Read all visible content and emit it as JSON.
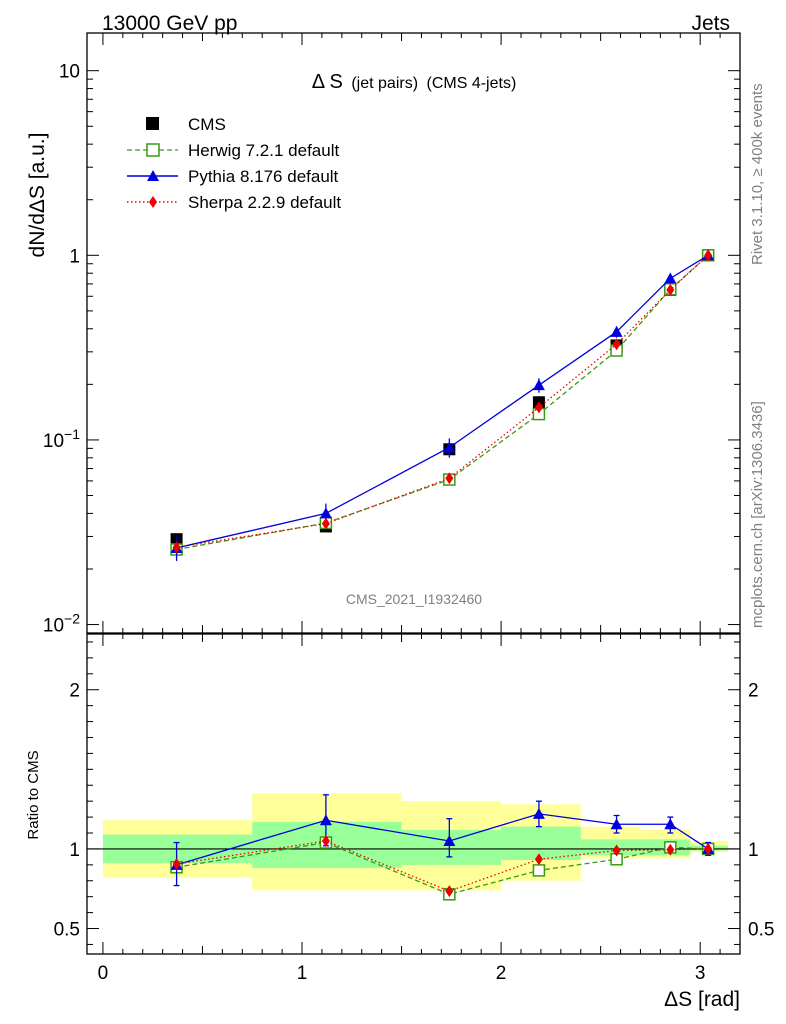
{
  "header": {
    "left": "13000 GeV pp",
    "right": "Jets"
  },
  "side_labels": {
    "rivet": "Rivet 3.1.10, ≥ 400k events",
    "mcplots": "mcplots.cern.ch [arXiv:1306.3436]"
  },
  "colors": {
    "cms": "#000000",
    "herwig": "#3a9a10",
    "pythia": "#0000dd",
    "sherpa": "#ee0000",
    "band_inner": "#99ff99",
    "band_outer": "#ffff99"
  },
  "chart_data": [
    {
      "type": "scatter",
      "title_main": "Δ S",
      "title_sub": "(jet pairs)",
      "title_tail": "(CMS 4-jets)",
      "watermark": "CMS_2021_I1932460",
      "ylabel": "dN/dΔS [a.u.]",
      "yscale": "log",
      "ylim": [
        0.009,
        16
      ],
      "xlim": [
        -0.08,
        3.2
      ],
      "ytick_labels": [
        {
          "value": 10,
          "base": "10",
          "exp": ""
        },
        {
          "value": 1,
          "base": "1",
          "exp": ""
        },
        {
          "value": 0.1,
          "base": "10",
          "exp": "−1"
        },
        {
          "value": 0.01,
          "base": "10",
          "exp": "−2"
        }
      ],
      "legend": [
        "CMS",
        "Herwig 7.2.1 default",
        "Pythia 8.176 default",
        "Sherpa 2.2.9 default"
      ],
      "x": [
        0.37,
        1.12,
        1.74,
        2.19,
        2.58,
        2.85,
        3.04
      ],
      "series": [
        {
          "name": "CMS",
          "marker": "square-filled",
          "values": [
            0.029,
            0.034,
            0.089,
            0.16,
            0.325,
            0.65,
            1.0
          ]
        },
        {
          "name": "Herwig 7.2.1 default",
          "marker": "square-open",
          "line": "dashed",
          "values": [
            0.0255,
            0.0355,
            0.061,
            0.138,
            0.305,
            0.655,
            1.0
          ]
        },
        {
          "name": "Pythia 8.176 default",
          "marker": "triangle",
          "line": "solid",
          "values": [
            0.026,
            0.04,
            0.091,
            0.198,
            0.385,
            0.75,
            1.0
          ],
          "err": [
            0.15,
            0.13,
            0.12,
            0.09,
            0.07,
            0.06,
            0.03
          ]
        },
        {
          "name": "Sherpa 2.2.9 default",
          "marker": "diamond",
          "line": "dotted",
          "values": [
            0.0262,
            0.0352,
            0.062,
            0.15,
            0.33,
            0.65,
            1.0
          ]
        }
      ]
    },
    {
      "type": "scatter",
      "ylabel": "Ratio to CMS",
      "xlabel": "ΔS [rad]",
      "ylim": [
        0.34,
        2.35
      ],
      "xlim": [
        -0.08,
        3.2
      ],
      "yticks": [
        0.5,
        1,
        2
      ],
      "ytick_labels": [
        "0.5",
        "1",
        "2"
      ],
      "xticks": [
        0,
        1,
        2,
        3
      ],
      "xtick_labels": [
        "0",
        "1",
        "2",
        "3"
      ],
      "bins": [
        {
          "lo": 0.0,
          "hi": 0.75,
          "inner": [
            0.91,
            1.09
          ],
          "outer": [
            0.82,
            1.18
          ]
        },
        {
          "lo": 0.75,
          "hi": 1.5,
          "inner": [
            0.88,
            1.17
          ],
          "outer": [
            0.74,
            1.35
          ]
        },
        {
          "lo": 1.5,
          "hi": 2.0,
          "inner": [
            0.9,
            1.12
          ],
          "outer": [
            0.74,
            1.3
          ]
        },
        {
          "lo": 2.0,
          "hi": 2.4,
          "inner": [
            0.93,
            1.14
          ],
          "outer": [
            0.8,
            1.28
          ]
        },
        {
          "lo": 2.4,
          "hi": 2.7,
          "inner": [
            0.96,
            1.06
          ],
          "outer": [
            0.94,
            1.14
          ]
        },
        {
          "lo": 2.7,
          "hi": 2.95,
          "inner": [
            0.96,
            1.06
          ],
          "outer": [
            0.94,
            1.12
          ]
        },
        {
          "lo": 2.95,
          "hi": 3.14,
          "inner": [
            0.99,
            1.02
          ],
          "outer": [
            0.98,
            1.05
          ]
        }
      ],
      "x": [
        0.37,
        1.12,
        1.74,
        2.19,
        2.58,
        2.85,
        3.04
      ],
      "series": [
        {
          "name": "Herwig 7.2.1 default",
          "values": [
            0.885,
            1.04,
            0.715,
            0.865,
            0.935,
            1.01,
            1.0
          ]
        },
        {
          "name": "Pythia 8.176 default",
          "values": [
            0.9,
            1.18,
            1.05,
            1.22,
            1.155,
            1.155,
            1.0
          ],
          "err_lo": [
            0.77,
            1.02,
            0.95,
            1.14,
            1.1,
            1.1,
            0.96
          ],
          "err_hi": [
            1.04,
            1.34,
            1.19,
            1.3,
            1.21,
            1.2,
            1.04
          ]
        },
        {
          "name": "Sherpa 2.2.9 default",
          "values": [
            0.905,
            1.05,
            0.735,
            0.935,
            0.99,
            0.995,
            1.0
          ]
        }
      ]
    }
  ]
}
